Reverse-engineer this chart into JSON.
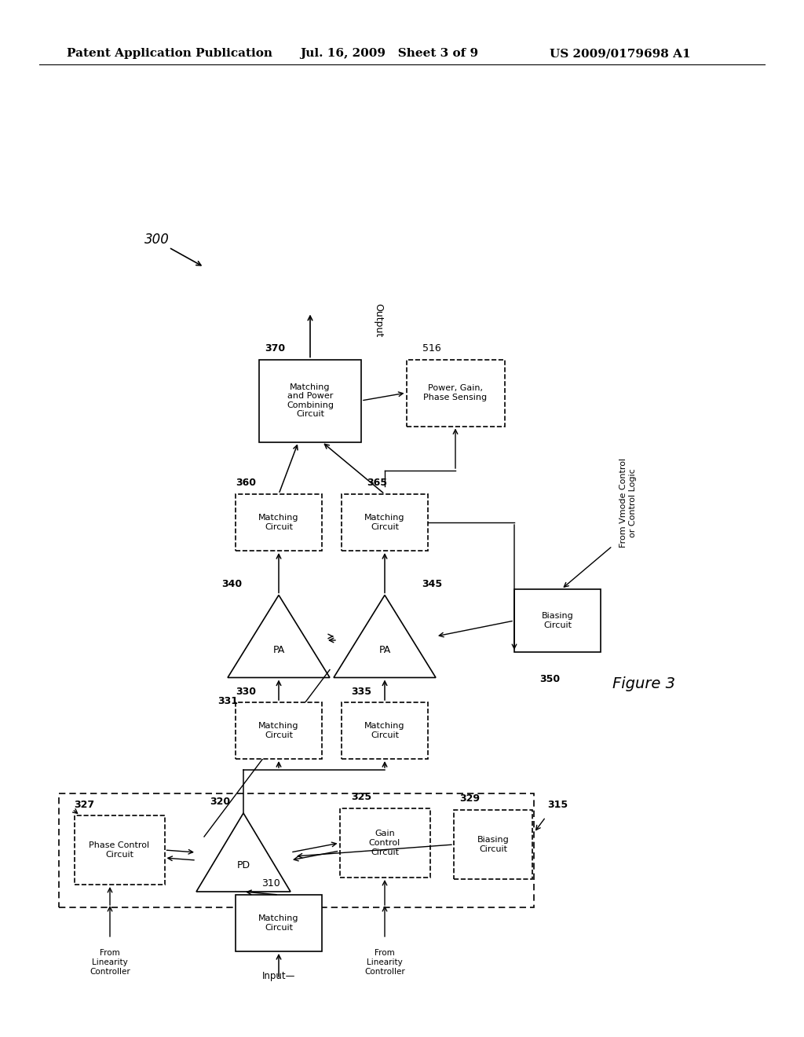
{
  "title_left": "Patent Application Publication",
  "title_mid": "Jul. 16, 2009   Sheet 3 of 9",
  "title_right": "US 2009/0179698 A1",
  "figure_label": "Figure 3",
  "background_color": "#ffffff"
}
